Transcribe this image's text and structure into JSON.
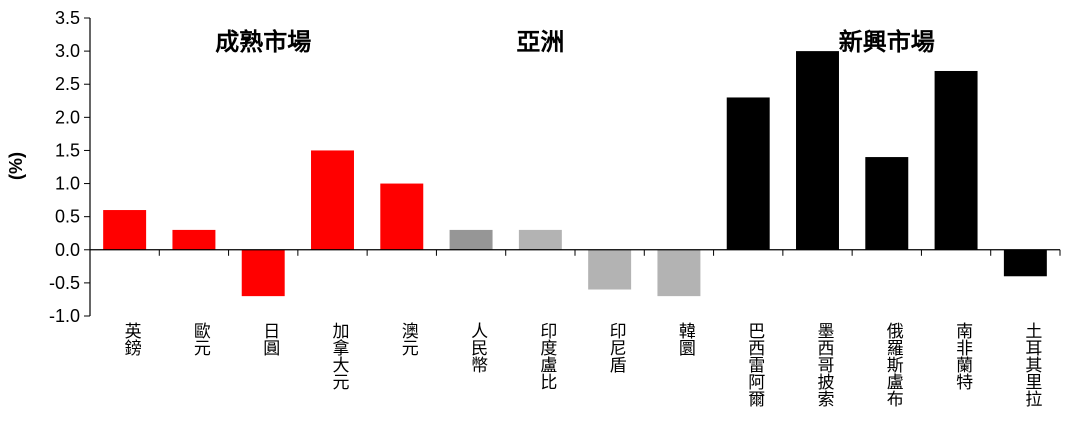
{
  "chart_data": {
    "type": "bar",
    "ylabel": "(%)",
    "ylim": [
      -1.0,
      3.5
    ],
    "yticks": [
      "3.5",
      "3.0",
      "2.5",
      "2.0",
      "1.5",
      "1.0",
      "0.5",
      "0.0",
      "-0.5",
      "-1.0"
    ],
    "grid": false,
    "groups": [
      {
        "label": "成熟市場",
        "color": "#FF0000"
      },
      {
        "label": "亞洲",
        "color": "#A6A6A6"
      },
      {
        "label": "新興市場",
        "color": "#000000"
      }
    ],
    "categories": [
      "英鎊",
      "歐元",
      "日圓",
      "加拿大元",
      "澳元",
      "人民幣",
      "印度盧比",
      "印尼盾",
      "韓圜",
      "巴西雷阿爾",
      "墨西哥披索",
      "俄羅斯盧布",
      "南非蘭特",
      "土耳其里拉"
    ],
    "values": [
      0.6,
      0.3,
      -0.7,
      1.5,
      1.0,
      0.3,
      0.3,
      -0.6,
      -0.7,
      2.3,
      3.0,
      1.4,
      2.7,
      -0.4
    ],
    "colors": [
      "#FF0000",
      "#FF0000",
      "#FF0000",
      "#FF0000",
      "#FF0000",
      "#969696",
      "#B3B3B3",
      "#B3B3B3",
      "#B3B3B3",
      "#000000",
      "#000000",
      "#000000",
      "#000000",
      "#000000"
    ]
  }
}
